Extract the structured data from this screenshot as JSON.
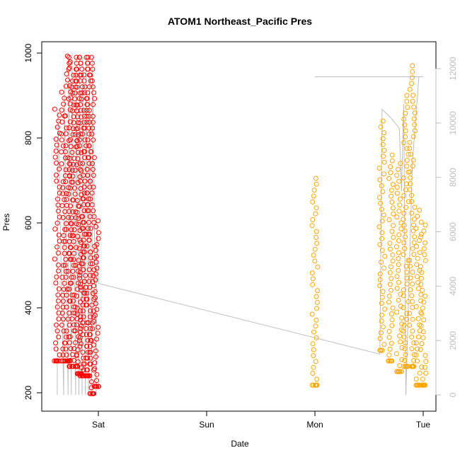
{
  "chart_data": {
    "type": "scatter",
    "title": "ATOM1 Northeast_Pacific Pres",
    "xlabel": "Date",
    "ylabel": "Pres",
    "x_ticks": [
      "Sat",
      "Sun",
      "Mon",
      "Tue"
    ],
    "x_range_days": [
      -0.45,
      3.12
    ],
    "ylim": [
      180,
      1010
    ],
    "y_ticks": [
      200,
      400,
      600,
      800,
      1000
    ],
    "y2_ticks": [
      "0",
      "2000",
      "4000",
      "6000",
      "8000",
      "10000",
      "12000"
    ],
    "y2lim": [
      -300,
      13000
    ],
    "colors": {
      "series_red": "#ff0000",
      "series_orange": "#ffa500",
      "line": "#bebebe",
      "axis2": "#bdbdbd"
    },
    "series": [
      {
        "color": "#ff0000",
        "profiles": [
          {
            "x": -0.38,
            "pmin": 275,
            "pmax": 868
          },
          {
            "x": -0.32,
            "pmin": 275,
            "pmax": 922
          },
          {
            "x": -0.28,
            "pmin": 275,
            "pmax": 993
          },
          {
            "x": -0.25,
            "pmin": 262,
            "pmax": 990
          },
          {
            "x": -0.21,
            "pmin": 262,
            "pmax": 990
          },
          {
            "x": -0.18,
            "pmin": 245,
            "pmax": 990
          },
          {
            "x": -0.15,
            "pmin": 240,
            "pmax": 990
          },
          {
            "x": -0.12,
            "pmin": 240,
            "pmax": 990
          },
          {
            "x": -0.09,
            "pmin": 240,
            "pmax": 990
          },
          {
            "x": -0.06,
            "pmin": 198,
            "pmax": 990
          },
          {
            "x": -0.02,
            "pmin": 215,
            "pmax": 605
          }
        ]
      },
      {
        "color": "#ffa500",
        "profiles": [
          {
            "x": 2.0,
            "pmin": 218,
            "pmax": 705
          },
          {
            "x": 2.62,
            "pmin": 300,
            "pmax": 840
          },
          {
            "x": 2.7,
            "pmin": 275,
            "pmax": 760
          },
          {
            "x": 2.78,
            "pmin": 250,
            "pmax": 740
          },
          {
            "x": 2.84,
            "pmin": 262,
            "pmax": 900
          },
          {
            "x": 2.9,
            "pmin": 262,
            "pmax": 970
          },
          {
            "x": 2.96,
            "pmin": 218,
            "pmax": 630
          },
          {
            "x": 3.0,
            "pmin": 218,
            "pmax": 595
          }
        ]
      }
    ],
    "line_y2": [
      {
        "x": -0.38,
        "y2": 0
      },
      {
        "x": 0.0,
        "y2": 4100
      },
      {
        "x": 2.6,
        "y2": 1500
      },
      {
        "x": 2.84,
        "y2": 0
      },
      {
        "x": 2.0,
        "y2": 11700
      },
      {
        "x": 3.0,
        "y2": 11700
      }
    ]
  }
}
